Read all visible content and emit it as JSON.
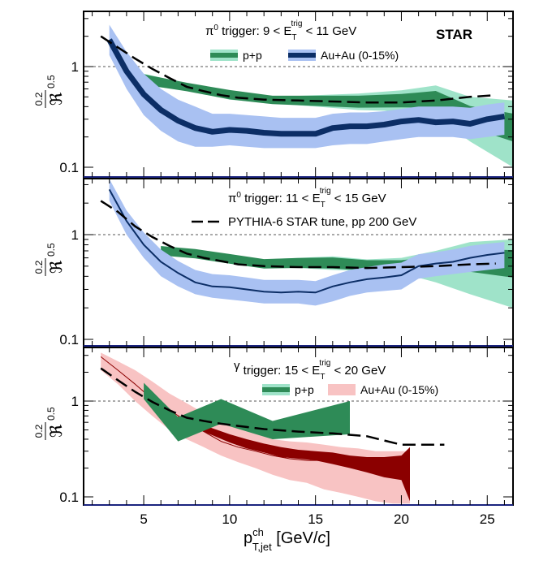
{
  "experiment_label": "STAR",
  "reference_label": "1",
  "colors": {
    "pp_light": "#9fe3c9",
    "pp_dark": "#2e8b57",
    "auau_pi_light": "#a9c1f2",
    "auau_pi_dark": "#0c2e66",
    "auau_gamma_light": "#f8c3c3",
    "auau_gamma_dark": "#8b0000",
    "frame": "#000000",
    "ref_line": "#555555"
  },
  "chart_data": [
    {
      "type": "area",
      "panel": "top",
      "trigger_label": [
        "π",
        "0",
        " trigger: 9 < E",
        "T",
        "trig",
        " < 11 GeV"
      ],
      "ylabel": {
        "main": "ℜ",
        "sup": "0.5",
        "num": "0.2"
      },
      "ylim": [
        0.085,
        3.2
      ],
      "yscale": "log",
      "xlim": [
        1.5,
        26.5
      ],
      "ref_line": 1,
      "yticks": [
        0.1,
        1
      ],
      "ytick_labels": [
        "0.1",
        "1"
      ],
      "legend": [
        {
          "label": "p+p",
          "series": "pp"
        },
        {
          "label": "Au+Au (0-15%)",
          "series": "auau"
        }
      ],
      "series": [
        {
          "name": "pp",
          "style": "pp",
          "x": [
            5,
            7.5,
            10,
            12.5,
            15,
            17.5,
            20,
            22,
            24,
            26.5
          ],
          "low": [
            0.65,
            0.58,
            0.47,
            0.43,
            0.4,
            0.37,
            0.36,
            0.32,
            0.18,
            0.1
          ],
          "high": [
            0.85,
            0.68,
            0.58,
            0.5,
            0.52,
            0.54,
            0.58,
            0.65,
            0.5,
            0.46
          ],
          "center": [
            0.75,
            0.63,
            0.53,
            0.47,
            0.46,
            0.45,
            0.46,
            0.48,
            0.32,
            0.25
          ]
        },
        {
          "name": "auau",
          "style": "auau_pi",
          "x": [
            3,
            4,
            5,
            6,
            7,
            8,
            9,
            10,
            11,
            12,
            13,
            14,
            15,
            16,
            17,
            18,
            19,
            20,
            21,
            22,
            23,
            24,
            25,
            26
          ],
          "low": [
            1.3,
            0.6,
            0.33,
            0.23,
            0.18,
            0.16,
            0.16,
            0.165,
            0.16,
            0.155,
            0.155,
            0.155,
            0.155,
            0.165,
            0.17,
            0.17,
            0.18,
            0.19,
            0.2,
            0.2,
            0.2,
            0.19,
            0.2,
            0.21
          ],
          "high": [
            2.6,
            1.4,
            0.85,
            0.6,
            0.47,
            0.4,
            0.34,
            0.34,
            0.33,
            0.32,
            0.31,
            0.31,
            0.31,
            0.34,
            0.35,
            0.35,
            0.36,
            0.38,
            0.4,
            0.4,
            0.4,
            0.39,
            0.42,
            0.44
          ],
          "center": [
            1.85,
            0.9,
            0.53,
            0.37,
            0.29,
            0.245,
            0.225,
            0.235,
            0.23,
            0.22,
            0.215,
            0.215,
            0.215,
            0.245,
            0.255,
            0.255,
            0.265,
            0.285,
            0.295,
            0.28,
            0.285,
            0.27,
            0.3,
            0.32
          ]
        },
        {
          "name": "pythia",
          "style": "pythia",
          "x": [
            2.5,
            3.5,
            4.5,
            5.5,
            6.5,
            7.5,
            8.5,
            9.5,
            10.5,
            12,
            14,
            16,
            18,
            20,
            22,
            24,
            25.5
          ],
          "y": [
            2.0,
            1.55,
            1.2,
            0.95,
            0.77,
            0.63,
            0.57,
            0.52,
            0.49,
            0.47,
            0.46,
            0.45,
            0.44,
            0.44,
            0.46,
            0.5,
            0.52
          ]
        }
      ]
    },
    {
      "type": "area",
      "panel": "middle",
      "trigger_label": [
        "π",
        "0",
        " trigger: 11 < E",
        "T",
        "trig",
        " < 15 GeV"
      ],
      "pythia_legend": "PYTHIA-6 STAR tune, pp 200 GeV",
      "ylabel": {
        "main": "ℜ",
        "sup": "0.5",
        "num": "0.2"
      },
      "ylim": [
        0.085,
        3.2
      ],
      "yscale": "log",
      "xlim": [
        1.5,
        26.5
      ],
      "ref_line": 1,
      "yticks": [
        0.1,
        1
      ],
      "ytick_labels": [
        "0.1",
        "1"
      ],
      "series": [
        {
          "name": "pp",
          "style": "pp",
          "x": [
            6,
            8,
            10,
            12,
            14,
            16,
            18,
            20,
            22,
            24,
            26.5
          ],
          "low": [
            0.65,
            0.6,
            0.53,
            0.48,
            0.48,
            0.46,
            0.45,
            0.43,
            0.35,
            0.27,
            0.2
          ],
          "high": [
            0.78,
            0.72,
            0.65,
            0.58,
            0.6,
            0.62,
            0.58,
            0.6,
            0.7,
            0.85,
            0.9
          ],
          "center": [
            0.7,
            0.66,
            0.59,
            0.53,
            0.54,
            0.54,
            0.51,
            0.5,
            0.52,
            0.6,
            0.55
          ]
        },
        {
          "name": "auau",
          "style": "auau_pi",
          "x": [
            3,
            4,
            5,
            6,
            7,
            8,
            9,
            10,
            11,
            12,
            13,
            14,
            15,
            16,
            17,
            18,
            19,
            20,
            21,
            22,
            23,
            24,
            25,
            26
          ],
          "low": [
            2.1,
            1.0,
            0.6,
            0.4,
            0.32,
            0.27,
            0.25,
            0.24,
            0.23,
            0.22,
            0.22,
            0.22,
            0.21,
            0.23,
            0.26,
            0.28,
            0.29,
            0.3,
            0.38,
            0.4,
            0.42,
            0.44,
            0.46,
            0.48
          ],
          "high": [
            3.4,
            1.7,
            1.05,
            0.72,
            0.56,
            0.46,
            0.42,
            0.41,
            0.39,
            0.37,
            0.37,
            0.37,
            0.36,
            0.41,
            0.46,
            0.49,
            0.52,
            0.54,
            0.65,
            0.68,
            0.72,
            0.78,
            0.82,
            0.85
          ]
        },
        {
          "name": "auau_center",
          "style": "auau_line",
          "x": [
            3,
            4,
            5,
            6,
            7,
            8,
            9,
            10,
            11,
            12,
            13,
            14,
            15,
            16,
            17,
            18,
            19,
            20,
            21,
            22,
            23,
            24,
            25,
            26
          ],
          "y": [
            2.7,
            1.35,
            0.8,
            0.55,
            0.43,
            0.35,
            0.32,
            0.315,
            0.3,
            0.285,
            0.28,
            0.285,
            0.28,
            0.32,
            0.35,
            0.375,
            0.39,
            0.41,
            0.5,
            0.53,
            0.55,
            0.6,
            0.64,
            0.67
          ]
        },
        {
          "name": "pythia",
          "style": "pythia",
          "x": [
            2.5,
            3.5,
            4.5,
            5.5,
            6.5,
            7.5,
            8.5,
            9.5,
            10.5,
            12,
            14,
            16,
            18,
            20,
            22,
            24,
            25.5
          ],
          "y": [
            2.1,
            1.65,
            1.2,
            0.95,
            0.78,
            0.66,
            0.6,
            0.56,
            0.52,
            0.5,
            0.49,
            0.49,
            0.48,
            0.49,
            0.5,
            0.52,
            0.53
          ]
        }
      ]
    },
    {
      "type": "area",
      "panel": "bottom",
      "trigger_label": [
        "γ",
        "",
        " trigger: 15 < E",
        "T",
        "trig",
        " < 20 GeV"
      ],
      "ylabel": {
        "main": "ℜ",
        "sup": "0.5",
        "num": "0.2"
      },
      "ylim": [
        0.085,
        3.2
      ],
      "yscale": "log",
      "xlim": [
        1.5,
        26.5
      ],
      "ref_line": 1,
      "yticks": [
        0.1,
        1
      ],
      "ytick_labels": [
        "0.1",
        "1"
      ],
      "xticks": [
        5,
        10,
        15,
        20,
        25
      ],
      "xtick_labels": [
        "5",
        "10",
        "15",
        "20",
        "25"
      ],
      "xlabel": {
        "main": "p",
        "sup": "ch",
        "sub": "T,jet",
        "unit_open": " [GeV/",
        "unit_c": "c",
        "unit_close": "]"
      },
      "legend": [
        {
          "label": "p+p",
          "series": "pp"
        },
        {
          "label": "Au+Au (0-15%)",
          "series": "auau"
        }
      ],
      "series": [
        {
          "name": "auau",
          "style": "auau_gamma",
          "x": [
            2.5,
            3.5,
            4.5,
            5.5,
            6.5,
            7.5,
            8.5,
            9.5,
            10.5,
            11.5,
            12.5,
            13.5,
            14.5,
            15.5,
            16.5,
            17.5,
            18.5,
            19.5,
            20.5
          ],
          "low": [
            2.1,
            1.5,
            1.0,
            0.7,
            0.5,
            0.4,
            0.33,
            0.27,
            0.23,
            0.2,
            0.17,
            0.15,
            0.14,
            0.12,
            0.11,
            0.1,
            0.09,
            0.085,
            0.085
          ],
          "high": [
            3.2,
            2.6,
            2.1,
            1.6,
            1.2,
            0.95,
            0.75,
            0.6,
            0.52,
            0.46,
            0.4,
            0.38,
            0.37,
            0.35,
            0.33,
            0.32,
            0.3,
            0.3,
            0.3
          ],
          "center": [
            2.9,
            2.1,
            1.5,
            1.05,
            0.8,
            0.62,
            0.48,
            0.38,
            0.33,
            0.3,
            0.27,
            0.25,
            0.24,
            0.24,
            0.22,
            0.21,
            0.19,
            0.18,
            0.18
          ]
        },
        {
          "name": "auau_dark",
          "style": "auau_gamma_band",
          "x": [
            7,
            8,
            9,
            10,
            11,
            12,
            13,
            14,
            15,
            16,
            17,
            18,
            19,
            20,
            20.5
          ],
          "low": [
            0.64,
            0.52,
            0.44,
            0.37,
            0.32,
            0.29,
            0.26,
            0.25,
            0.24,
            0.22,
            0.2,
            0.18,
            0.16,
            0.15,
            0.09
          ],
          "high": [
            0.7,
            0.6,
            0.52,
            0.45,
            0.4,
            0.36,
            0.33,
            0.31,
            0.3,
            0.29,
            0.27,
            0.26,
            0.26,
            0.27,
            0.33
          ]
        },
        {
          "name": "pp",
          "style": "pp_gamma",
          "x": [
            5,
            7,
            9.5,
            12.5,
            17
          ],
          "low": [
            1.05,
            0.38,
            0.58,
            0.4,
            0.45
          ],
          "high": [
            1.55,
            0.68,
            1.05,
            0.62,
            1.0
          ]
        },
        {
          "name": "pythia",
          "style": "pythia",
          "x": [
            2.5,
            3.5,
            4.5,
            5.5,
            6.5,
            7.5,
            8.5,
            9.5,
            10.5,
            12,
            14,
            16,
            18,
            20,
            21,
            22.5
          ],
          "y": [
            2.2,
            1.65,
            1.25,
            0.98,
            0.8,
            0.67,
            0.62,
            0.58,
            0.55,
            0.51,
            0.48,
            0.46,
            0.43,
            0.35,
            0.35,
            0.35
          ]
        }
      ]
    }
  ]
}
